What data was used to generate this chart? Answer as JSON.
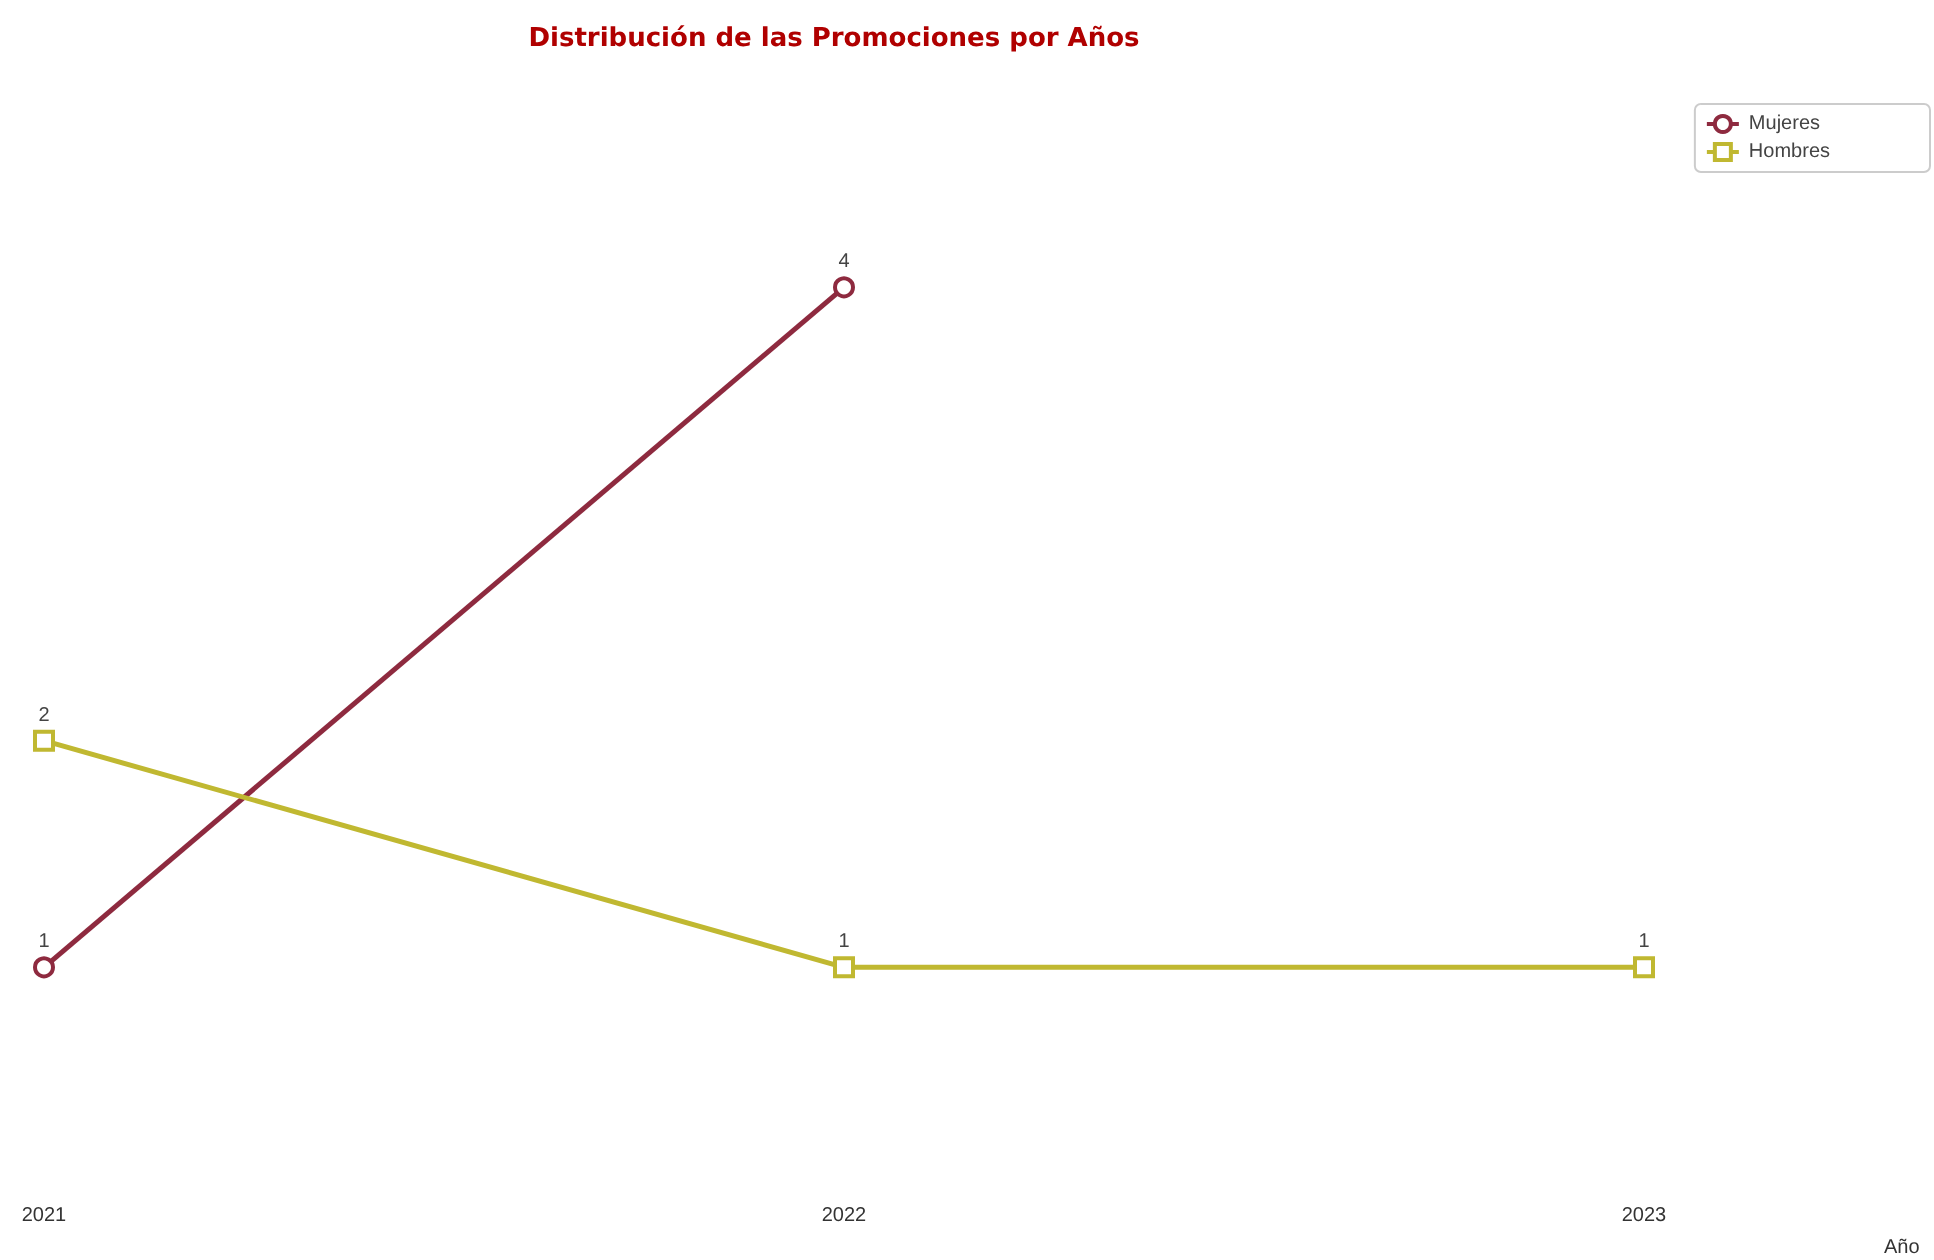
{
  "chart_data": {
    "type": "line",
    "title": "Distribución de las Promociones por Años",
    "xlabel": "Año",
    "categories": [
      "2021",
      "2022",
      "2023"
    ],
    "series": [
      {
        "name": "Mujeres",
        "color": "#8e2a3f",
        "marker": "circle",
        "values": [
          1,
          4,
          null
        ]
      },
      {
        "name": "Hombres",
        "color": "#c0b831",
        "marker": "square",
        "values": [
          2,
          1,
          1
        ]
      }
    ],
    "tick_labels": "x",
    "data_labels": true,
    "legend": "top right",
    "grid": false
  }
}
